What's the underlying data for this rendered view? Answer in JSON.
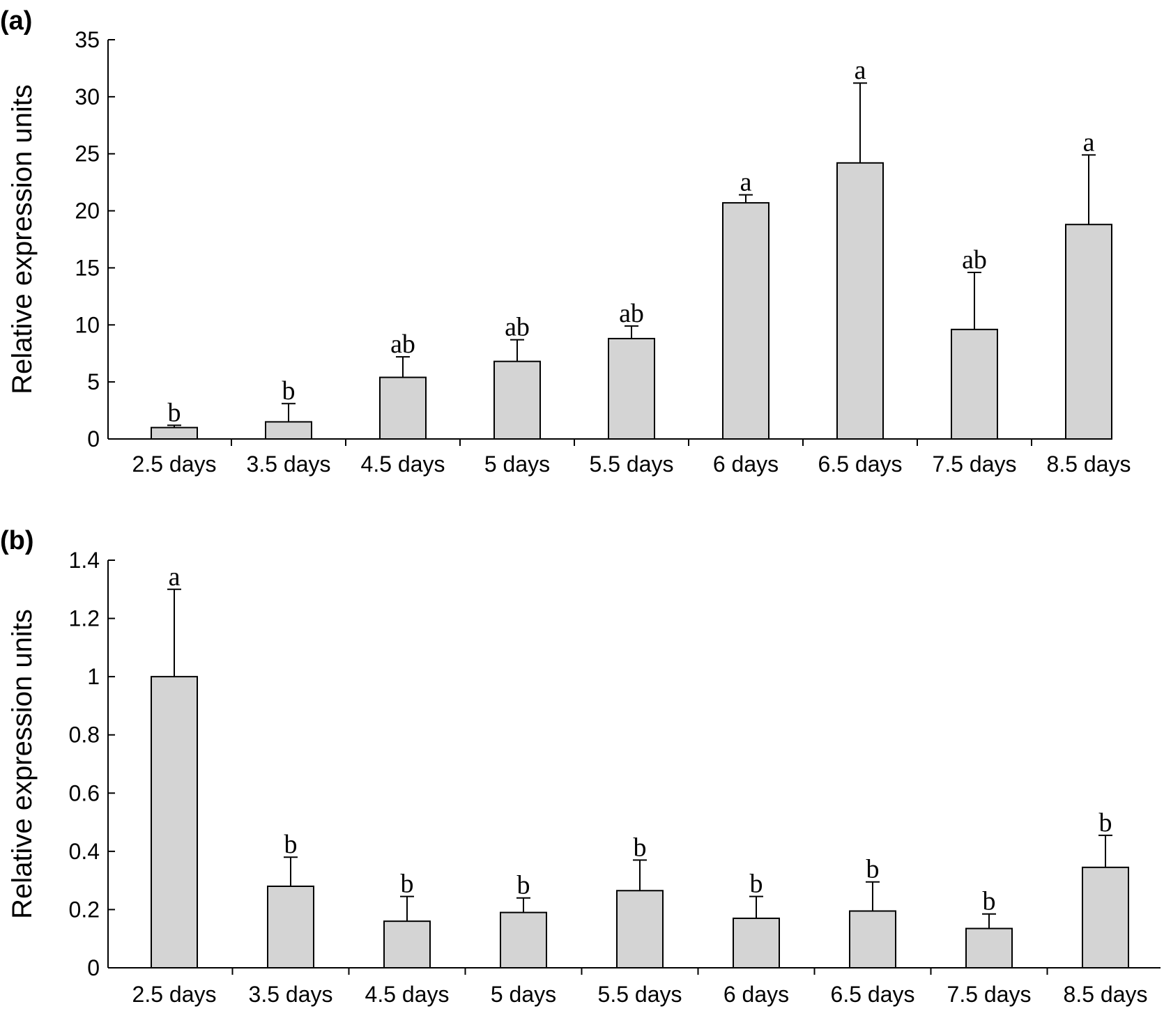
{
  "chart_data": [
    {
      "type": "bar",
      "panel_label": "(a)",
      "ylabel": "Relative expression units",
      "xlabel": "",
      "ylim": [
        0,
        35
      ],
      "yticks": [
        "0",
        "5",
        "10",
        "15",
        "20",
        "25",
        "30",
        "35"
      ],
      "ytick_values": [
        0,
        5,
        10,
        15,
        20,
        25,
        30,
        35
      ],
      "categories": [
        "2.5 days",
        "3.5 days",
        "4.5 days",
        "5 days",
        "5.5 days",
        "6 days",
        "6.5 days",
        "7.5 days",
        "8.5 days"
      ],
      "values": [
        1.0,
        1.5,
        5.4,
        6.8,
        8.8,
        20.7,
        24.2,
        9.6,
        18.8
      ],
      "errors": [
        0.2,
        1.6,
        1.8,
        1.9,
        1.1,
        0.7,
        7.0,
        5.0,
        6.1
      ],
      "significance": [
        "b",
        "b",
        "ab",
        "ab",
        "ab",
        "a",
        "a",
        "ab",
        "a"
      ],
      "bar_color": "#d4d4d4",
      "grid": false
    },
    {
      "type": "bar",
      "panel_label": "(b)",
      "ylabel": "Relative expression units",
      "xlabel": "",
      "ylim": [
        0,
        1.4
      ],
      "yticks": [
        "0",
        "0.2",
        "0.4",
        "0.6",
        "0.8",
        "1",
        "1.2",
        "1.4"
      ],
      "ytick_values": [
        0,
        0.2,
        0.4,
        0.6,
        0.8,
        1.0,
        1.2,
        1.4
      ],
      "categories": [
        "2.5 days",
        "3.5 days",
        "4.5 days",
        "5 days",
        "5.5 days",
        "6 days",
        "6.5 days",
        "7.5 days",
        "8.5 days"
      ],
      "values": [
        1.0,
        0.28,
        0.16,
        0.19,
        0.265,
        0.17,
        0.195,
        0.135,
        0.345
      ],
      "errors": [
        0.3,
        0.1,
        0.085,
        0.05,
        0.105,
        0.075,
        0.1,
        0.05,
        0.11
      ],
      "significance": [
        "a",
        "b",
        "b",
        "b",
        "b",
        "b",
        "b",
        "b",
        "b"
      ],
      "bar_color": "#d4d4d4",
      "grid": false
    }
  ]
}
